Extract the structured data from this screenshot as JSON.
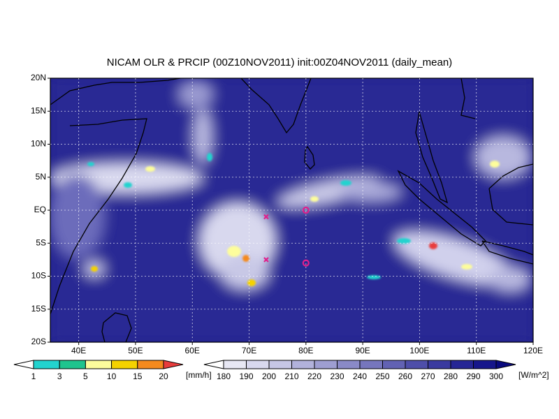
{
  "map": {
    "title": "NICAM OLR & PRCIP (00Z10NOV2011) init:00Z04NOV2011 (daily_mean)",
    "lon_range": [
      35,
      120
    ],
    "lat_range": [
      -20,
      20
    ],
    "lon_ticks": [
      {
        "value": 40,
        "label": "40E"
      },
      {
        "value": 50,
        "label": "50E"
      },
      {
        "value": 60,
        "label": "60E"
      },
      {
        "value": 70,
        "label": "70E"
      },
      {
        "value": 80,
        "label": "80E"
      },
      {
        "value": 90,
        "label": "90E"
      },
      {
        "value": 100,
        "label": "100E"
      },
      {
        "value": 110,
        "label": "110E"
      },
      {
        "value": 120,
        "label": "120E"
      }
    ],
    "lat_ticks": [
      {
        "value": 20,
        "label": "20N"
      },
      {
        "value": 15,
        "label": "15N"
      },
      {
        "value": 10,
        "label": "10N"
      },
      {
        "value": 5,
        "label": "5N"
      },
      {
        "value": 0,
        "label": "EQ"
      },
      {
        "value": -5,
        "label": "5S"
      },
      {
        "value": -10,
        "label": "10S"
      },
      {
        "value": -15,
        "label": "15S"
      },
      {
        "value": -20,
        "label": "20S"
      }
    ],
    "markers": [
      {
        "lon": 73,
        "lat": -1,
        "symbol": "x"
      },
      {
        "lon": 73,
        "lat": -7.5,
        "symbol": "x"
      },
      {
        "lon": 80,
        "lat": 0,
        "symbol": "o"
      },
      {
        "lon": 80,
        "lat": -8,
        "symbol": "o"
      }
    ]
  },
  "precip_colorbar": {
    "levels": [
      1,
      3,
      5,
      10,
      15,
      20
    ],
    "colors": [
      "#ffffff",
      "#22d3cf",
      "#1fc48e",
      "#fdfd9c",
      "#f5d200",
      "#f58a1e",
      "#e83c3c"
    ],
    "unit": "[mm/h]"
  },
  "olr_colorbar": {
    "levels": [
      180,
      190,
      200,
      210,
      220,
      230,
      240,
      250,
      260,
      270,
      280,
      290,
      300
    ],
    "colors": [
      "#ffffff",
      "#e8e8f4",
      "#d8d8ee",
      "#c6c6e5",
      "#b2b2db",
      "#9e9ed1",
      "#8a8ac7",
      "#7676bd",
      "#6262b3",
      "#4e4ea9",
      "#3a3a9f",
      "#262695",
      "#16168b",
      "#0a0a7e"
    ],
    "unit": "[W/m^2]"
  }
}
